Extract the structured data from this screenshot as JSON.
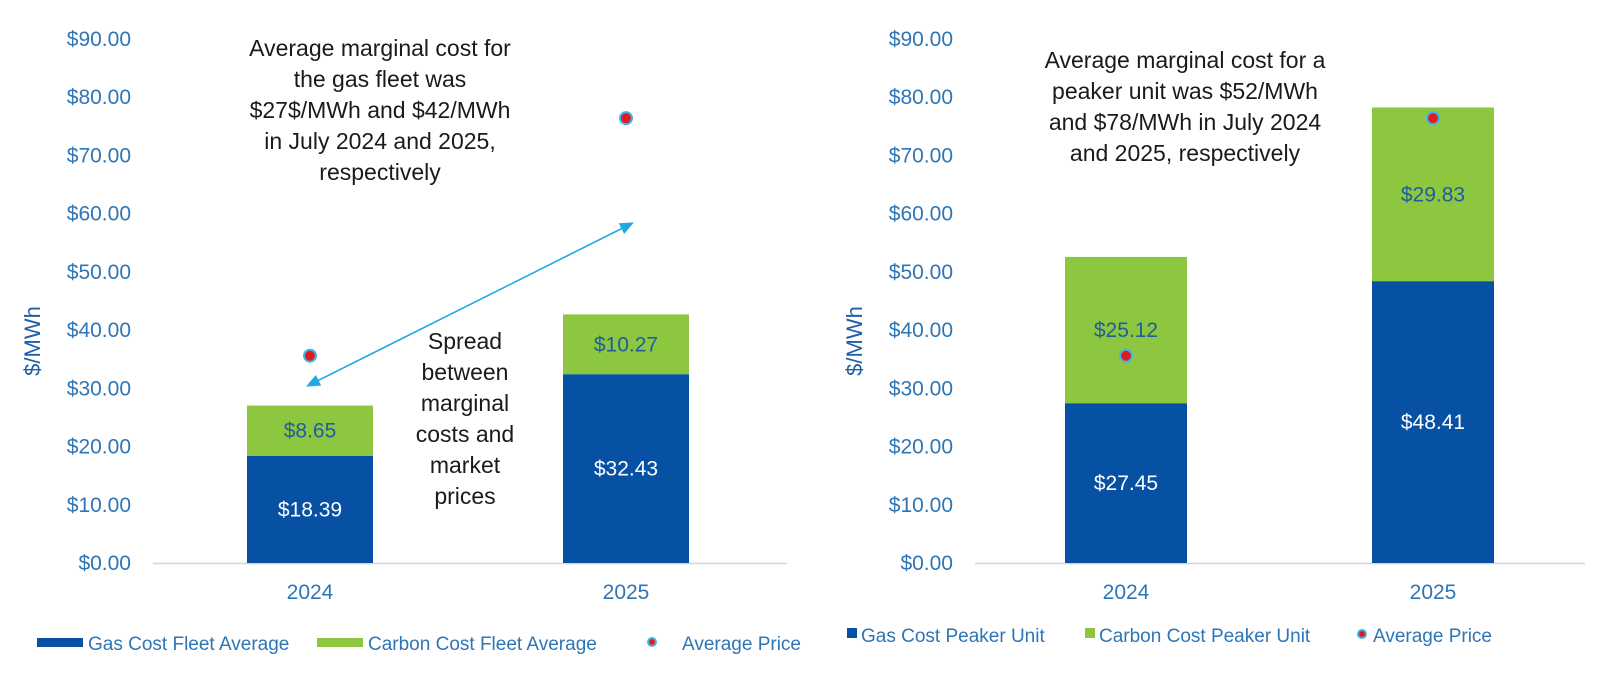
{
  "colors": {
    "gas": "#0651A4",
    "carbon": "#8DC63F",
    "price_fill": "#E11B22",
    "price_ring": "#41B6E6",
    "axis_text": "#2E75B6",
    "arrow": "#22A9E1"
  },
  "chart_data": [
    {
      "type": "bar",
      "stacked": true,
      "ylabel": "$/MWh",
      "ylim": [
        0,
        90
      ],
      "yticks": [
        "$0.00",
        "$10.00",
        "$20.00",
        "$30.00",
        "$40.00",
        "$50.00",
        "$60.00",
        "$70.00",
        "$80.00",
        "$90.00"
      ],
      "categories": [
        "2024",
        "2025"
      ],
      "series": [
        {
          "name": "Gas Cost Fleet Average",
          "kind": "bar",
          "values": [
            18.39,
            32.43
          ],
          "labels": [
            "$18.39",
            "$32.43"
          ]
        },
        {
          "name": "Carbon Cost Fleet Average",
          "kind": "bar",
          "values": [
            8.65,
            10.27
          ],
          "labels": [
            "$8.65",
            "$10.27"
          ]
        },
        {
          "name": "Average Price",
          "kind": "point",
          "values": [
            35.6,
            76.4
          ]
        }
      ],
      "annotations": [
        {
          "lines": [
            "Average marginal cost for",
            "the gas fleet was",
            "$27$/MWh and $42/MWh",
            "in July 2024 and 2025,",
            "respectively"
          ]
        },
        {
          "lines": [
            "Spread",
            "between",
            "marginal",
            "costs and",
            "market",
            "prices"
          ]
        }
      ]
    },
    {
      "type": "bar",
      "stacked": true,
      "ylabel": "$/MWh",
      "ylim": [
        0,
        90
      ],
      "yticks": [
        "$0.00",
        "$10.00",
        "$20.00",
        "$30.00",
        "$40.00",
        "$50.00",
        "$60.00",
        "$70.00",
        "$80.00",
        "$90.00"
      ],
      "categories": [
        "2024",
        "2025"
      ],
      "series": [
        {
          "name": "Gas Cost Peaker Unit",
          "kind": "bar",
          "values": [
            27.45,
            48.41
          ],
          "labels": [
            "$27.45",
            "$48.41"
          ]
        },
        {
          "name": "Carbon Cost Peaker Unit",
          "kind": "bar",
          "values": [
            25.12,
            29.83
          ],
          "labels": [
            "$25.12",
            "$29.83"
          ]
        },
        {
          "name": "Average Price",
          "kind": "point",
          "values": [
            35.6,
            76.4
          ]
        }
      ],
      "annotations": [
        {
          "lines": [
            "Average marginal cost for a",
            "peaker unit was $52/MWh",
            "and $78/MWh in July 2024",
            "and 2025, respectively"
          ]
        }
      ]
    }
  ]
}
